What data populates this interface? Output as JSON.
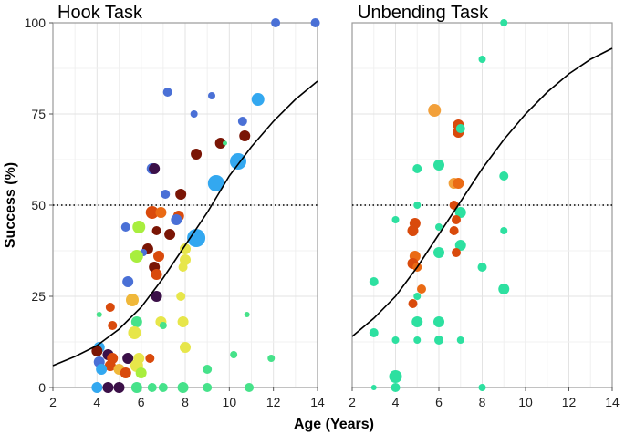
{
  "figure": {
    "ylabel": "Success (%)",
    "xlabel": "Age (Years)"
  },
  "chart_data": [
    {
      "type": "scatter",
      "title": "Hook Task",
      "xlim": [
        2,
        14
      ],
      "ylim": [
        0,
        100
      ],
      "x_ticks": [
        2,
        4,
        6,
        8,
        10,
        12,
        14
      ],
      "y_ticks": [
        0,
        25,
        50,
        75,
        100
      ],
      "reference_line_y": 50,
      "grid": true,
      "fit_curve": [
        [
          2,
          6
        ],
        [
          3,
          8.5
        ],
        [
          4,
          11.5
        ],
        [
          5,
          16
        ],
        [
          6,
          22
        ],
        [
          7,
          30
        ],
        [
          8,
          39
        ],
        [
          9,
          48
        ],
        [
          10,
          58
        ],
        [
          11,
          66
        ],
        [
          12,
          73
        ],
        [
          13,
          79
        ],
        [
          14,
          84
        ]
      ],
      "points": [
        {
          "x": 12.1,
          "y": 100,
          "size": 5,
          "color": "#4a70d6"
        },
        {
          "x": 13.9,
          "y": 100,
          "size": 5,
          "color": "#4a70d6"
        },
        {
          "x": 7.2,
          "y": 81,
          "size": 5,
          "color": "#4a70d6"
        },
        {
          "x": 9.2,
          "y": 80,
          "size": 4,
          "color": "#4a70d6"
        },
        {
          "x": 11.3,
          "y": 79,
          "size": 7,
          "color": "#33a8f0"
        },
        {
          "x": 8.4,
          "y": 75,
          "size": 4,
          "color": "#4a70d6"
        },
        {
          "x": 10.6,
          "y": 73,
          "size": 5,
          "color": "#4a70d6"
        },
        {
          "x": 10.7,
          "y": 69,
          "size": 6,
          "color": "#7a1505"
        },
        {
          "x": 9.6,
          "y": 67,
          "size": 6,
          "color": "#7a1505"
        },
        {
          "x": 9.8,
          "y": 67,
          "size": 2.5,
          "color": "#46e28a"
        },
        {
          "x": 8.5,
          "y": 64,
          "size": 6,
          "color": "#7a1505"
        },
        {
          "x": 10.4,
          "y": 62,
          "size": 9,
          "color": "#33a8f0"
        },
        {
          "x": 6.5,
          "y": 60,
          "size": 6,
          "color": "#4a70d6"
        },
        {
          "x": 6.6,
          "y": 60,
          "size": 6,
          "color": "#3b1048"
        },
        {
          "x": 9.4,
          "y": 56,
          "size": 9,
          "color": "#33a8f0"
        },
        {
          "x": 7.8,
          "y": 53,
          "size": 6,
          "color": "#7a1505"
        },
        {
          "x": 7.1,
          "y": 53,
          "size": 5,
          "color": "#4a70d6"
        },
        {
          "x": 6.5,
          "y": 48,
          "size": 7,
          "color": "#d94a0c"
        },
        {
          "x": 6.9,
          "y": 48,
          "size": 6,
          "color": "#ea6a14"
        },
        {
          "x": 7.7,
          "y": 47,
          "size": 6,
          "color": "#d94a0c"
        },
        {
          "x": 7.6,
          "y": 46,
          "size": 6,
          "color": "#4a70d6"
        },
        {
          "x": 5.3,
          "y": 44,
          "size": 5,
          "color": "#4a70d6"
        },
        {
          "x": 5.9,
          "y": 44,
          "size": 7,
          "color": "#a8ee3e"
        },
        {
          "x": 6.7,
          "y": 43,
          "size": 5,
          "color": "#7a1505"
        },
        {
          "x": 7.3,
          "y": 42,
          "size": 6,
          "color": "#7a1505"
        },
        {
          "x": 8.5,
          "y": 41,
          "size": 10,
          "color": "#33a8f0"
        },
        {
          "x": 6.3,
          "y": 38,
          "size": 6,
          "color": "#7a1505"
        },
        {
          "x": 8.0,
          "y": 38,
          "size": 6,
          "color": "#e7e64a"
        },
        {
          "x": 6.1,
          "y": 37,
          "size": 4,
          "color": "#4a70d6"
        },
        {
          "x": 5.8,
          "y": 36,
          "size": 7,
          "color": "#a8ee3e"
        },
        {
          "x": 6.8,
          "y": 36,
          "size": 6,
          "color": "#d94a0c"
        },
        {
          "x": 8.0,
          "y": 35,
          "size": 6,
          "color": "#e7e64a"
        },
        {
          "x": 6.6,
          "y": 33,
          "size": 6,
          "color": "#7a1505"
        },
        {
          "x": 7.9,
          "y": 33,
          "size": 5,
          "color": "#e7e64a"
        },
        {
          "x": 6.7,
          "y": 31,
          "size": 6,
          "color": "#d94a0c"
        },
        {
          "x": 5.4,
          "y": 29,
          "size": 6,
          "color": "#4a70d6"
        },
        {
          "x": 6.7,
          "y": 25,
          "size": 6,
          "color": "#3b1048"
        },
        {
          "x": 7.8,
          "y": 25,
          "size": 5,
          "color": "#e7e64a"
        },
        {
          "x": 5.6,
          "y": 24,
          "size": 7,
          "color": "#f0b83a"
        },
        {
          "x": 4.6,
          "y": 22,
          "size": 5,
          "color": "#d94a0c"
        },
        {
          "x": 4.1,
          "y": 20,
          "size": 3,
          "color": "#46e28a"
        },
        {
          "x": 10.8,
          "y": 20,
          "size": 3,
          "color": "#46e28a"
        },
        {
          "x": 6.9,
          "y": 18,
          "size": 6,
          "color": "#e7e64a"
        },
        {
          "x": 7.9,
          "y": 18,
          "size": 6,
          "color": "#e7e64a"
        },
        {
          "x": 5.8,
          "y": 18,
          "size": 6,
          "color": "#46e28a"
        },
        {
          "x": 4.7,
          "y": 17,
          "size": 5,
          "color": "#d94a0c"
        },
        {
          "x": 7.0,
          "y": 17,
          "size": 4,
          "color": "#46e28a"
        },
        {
          "x": 5.7,
          "y": 15,
          "size": 7,
          "color": "#e7e64a"
        },
        {
          "x": 4.1,
          "y": 11,
          "size": 6,
          "color": "#33a8f0"
        },
        {
          "x": 8.0,
          "y": 11,
          "size": 6,
          "color": "#e7e64a"
        },
        {
          "x": 4.0,
          "y": 10,
          "size": 6,
          "color": "#7a1505"
        },
        {
          "x": 10.2,
          "y": 9,
          "size": 4,
          "color": "#46e28a"
        },
        {
          "x": 4.5,
          "y": 9,
          "size": 6,
          "color": "#3b1048"
        },
        {
          "x": 4.7,
          "y": 8,
          "size": 6,
          "color": "#d94a0c"
        },
        {
          "x": 5.9,
          "y": 8,
          "size": 6,
          "color": "#e7e64a"
        },
        {
          "x": 11.9,
          "y": 8,
          "size": 4,
          "color": "#46e28a"
        },
        {
          "x": 4.1,
          "y": 7,
          "size": 6,
          "color": "#4a70d6"
        },
        {
          "x": 5.4,
          "y": 8,
          "size": 6,
          "color": "#3b1048"
        },
        {
          "x": 6.4,
          "y": 8,
          "size": 5,
          "color": "#d94a0c"
        },
        {
          "x": 4.6,
          "y": 6,
          "size": 6,
          "color": "#d94a0c"
        },
        {
          "x": 5.8,
          "y": 6,
          "size": 7,
          "color": "#e7e64a"
        },
        {
          "x": 5.0,
          "y": 5,
          "size": 6,
          "color": "#f0b83a"
        },
        {
          "x": 9.0,
          "y": 5,
          "size": 5,
          "color": "#46e28a"
        },
        {
          "x": 4.2,
          "y": 5,
          "size": 6,
          "color": "#33a8f0"
        },
        {
          "x": 6.0,
          "y": 4,
          "size": 6,
          "color": "#a8ee3e"
        },
        {
          "x": 5.3,
          "y": 4,
          "size": 6,
          "color": "#d94a0c"
        },
        {
          "x": 4.0,
          "y": 0,
          "size": 6,
          "color": "#33a8f0"
        },
        {
          "x": 4.5,
          "y": 0,
          "size": 6,
          "color": "#3b1048"
        },
        {
          "x": 5.0,
          "y": 0,
          "size": 6,
          "color": "#3b1048"
        },
        {
          "x": 5.8,
          "y": 0,
          "size": 6,
          "color": "#46e28a"
        },
        {
          "x": 6.5,
          "y": 0,
          "size": 5,
          "color": "#46e28a"
        },
        {
          "x": 7.0,
          "y": 0,
          "size": 5,
          "color": "#46e28a"
        },
        {
          "x": 7.9,
          "y": 0,
          "size": 6,
          "color": "#46e28a"
        },
        {
          "x": 9.0,
          "y": 0,
          "size": 5,
          "color": "#46e28a"
        },
        {
          "x": 10.9,
          "y": 0,
          "size": 5,
          "color": "#46e28a"
        }
      ]
    },
    {
      "type": "scatter",
      "title": "Unbending Task",
      "xlim": [
        2,
        14
      ],
      "ylim": [
        0,
        100
      ],
      "x_ticks": [
        2,
        4,
        6,
        8,
        10,
        12,
        14
      ],
      "y_ticks": [
        0,
        25,
        50,
        75,
        100
      ],
      "reference_line_y": 50,
      "grid": true,
      "fit_curve": [
        [
          2,
          14
        ],
        [
          3,
          19
        ],
        [
          4,
          25
        ],
        [
          5,
          33
        ],
        [
          6,
          42
        ],
        [
          7,
          51
        ],
        [
          8,
          60
        ],
        [
          9,
          68
        ],
        [
          10,
          75
        ],
        [
          11,
          81
        ],
        [
          12,
          86
        ],
        [
          13,
          90
        ],
        [
          14,
          93
        ]
      ],
      "points": [
        {
          "x": 9.0,
          "y": 100,
          "size": 4,
          "color": "#2de0a0"
        },
        {
          "x": 8.0,
          "y": 90,
          "size": 4,
          "color": "#2de0a0"
        },
        {
          "x": 5.8,
          "y": 76,
          "size": 7,
          "color": "#f2a03a"
        },
        {
          "x": 6.9,
          "y": 72,
          "size": 6,
          "color": "#d94a0c"
        },
        {
          "x": 6.9,
          "y": 70,
          "size": 6,
          "color": "#d94a0c"
        },
        {
          "x": 7.0,
          "y": 71,
          "size": 5,
          "color": "#2de0a0"
        },
        {
          "x": 6.0,
          "y": 61,
          "size": 6,
          "color": "#2de0a0"
        },
        {
          "x": 5.0,
          "y": 60,
          "size": 5,
          "color": "#2de0a0"
        },
        {
          "x": 9.0,
          "y": 58,
          "size": 5,
          "color": "#2de0a0"
        },
        {
          "x": 6.7,
          "y": 56,
          "size": 6,
          "color": "#f2a03a"
        },
        {
          "x": 6.9,
          "y": 56,
          "size": 6,
          "color": "#ea6a14"
        },
        {
          "x": 5.0,
          "y": 50,
          "size": 4,
          "color": "#2de0a0"
        },
        {
          "x": 6.7,
          "y": 50,
          "size": 5,
          "color": "#d94a0c"
        },
        {
          "x": 7.0,
          "y": 48,
          "size": 6,
          "color": "#2de0a0"
        },
        {
          "x": 4.0,
          "y": 46,
          "size": 4,
          "color": "#2de0a0"
        },
        {
          "x": 6.8,
          "y": 46,
          "size": 5,
          "color": "#d94a0c"
        },
        {
          "x": 4.9,
          "y": 45,
          "size": 6,
          "color": "#d94a0c"
        },
        {
          "x": 4.8,
          "y": 43,
          "size": 6,
          "color": "#d94a0c"
        },
        {
          "x": 6.0,
          "y": 44,
          "size": 4,
          "color": "#2de0a0"
        },
        {
          "x": 9.0,
          "y": 43,
          "size": 4,
          "color": "#2de0a0"
        },
        {
          "x": 6.7,
          "y": 43,
          "size": 5,
          "color": "#d94a0c"
        },
        {
          "x": 7.0,
          "y": 39,
          "size": 6,
          "color": "#2de0a0"
        },
        {
          "x": 6.0,
          "y": 37,
          "size": 6,
          "color": "#2de0a0"
        },
        {
          "x": 6.8,
          "y": 37,
          "size": 5,
          "color": "#d94a0c"
        },
        {
          "x": 4.9,
          "y": 36,
          "size": 6,
          "color": "#ea6a14"
        },
        {
          "x": 4.8,
          "y": 34,
          "size": 6,
          "color": "#d94a0c"
        },
        {
          "x": 5.0,
          "y": 33,
          "size": 5,
          "color": "#ea6a14"
        },
        {
          "x": 8.0,
          "y": 33,
          "size": 5,
          "color": "#2de0a0"
        },
        {
          "x": 3.0,
          "y": 29,
          "size": 5,
          "color": "#2de0a0"
        },
        {
          "x": 5.2,
          "y": 27,
          "size": 5,
          "color": "#ea6a14"
        },
        {
          "x": 9.0,
          "y": 27,
          "size": 6,
          "color": "#2de0a0"
        },
        {
          "x": 4.8,
          "y": 23,
          "size": 5,
          "color": "#d94a0c"
        },
        {
          "x": 5.0,
          "y": 25,
          "size": 4,
          "color": "#2de0a0"
        },
        {
          "x": 5.0,
          "y": 18,
          "size": 6,
          "color": "#2de0a0"
        },
        {
          "x": 6.0,
          "y": 18,
          "size": 6,
          "color": "#2de0a0"
        },
        {
          "x": 3.0,
          "y": 15,
          "size": 5,
          "color": "#2de0a0"
        },
        {
          "x": 4.0,
          "y": 13,
          "size": 4,
          "color": "#2de0a0"
        },
        {
          "x": 5.0,
          "y": 13,
          "size": 4,
          "color": "#2de0a0"
        },
        {
          "x": 6.0,
          "y": 13,
          "size": 5,
          "color": "#2de0a0"
        },
        {
          "x": 7.0,
          "y": 13,
          "size": 4,
          "color": "#2de0a0"
        },
        {
          "x": 4.0,
          "y": 3,
          "size": 7,
          "color": "#2de0a0"
        },
        {
          "x": 3.0,
          "y": 0,
          "size": 3,
          "color": "#2de0a0"
        },
        {
          "x": 4.0,
          "y": 0,
          "size": 5,
          "color": "#2de0a0"
        },
        {
          "x": 8.0,
          "y": 0,
          "size": 4,
          "color": "#2de0a0"
        }
      ]
    }
  ]
}
